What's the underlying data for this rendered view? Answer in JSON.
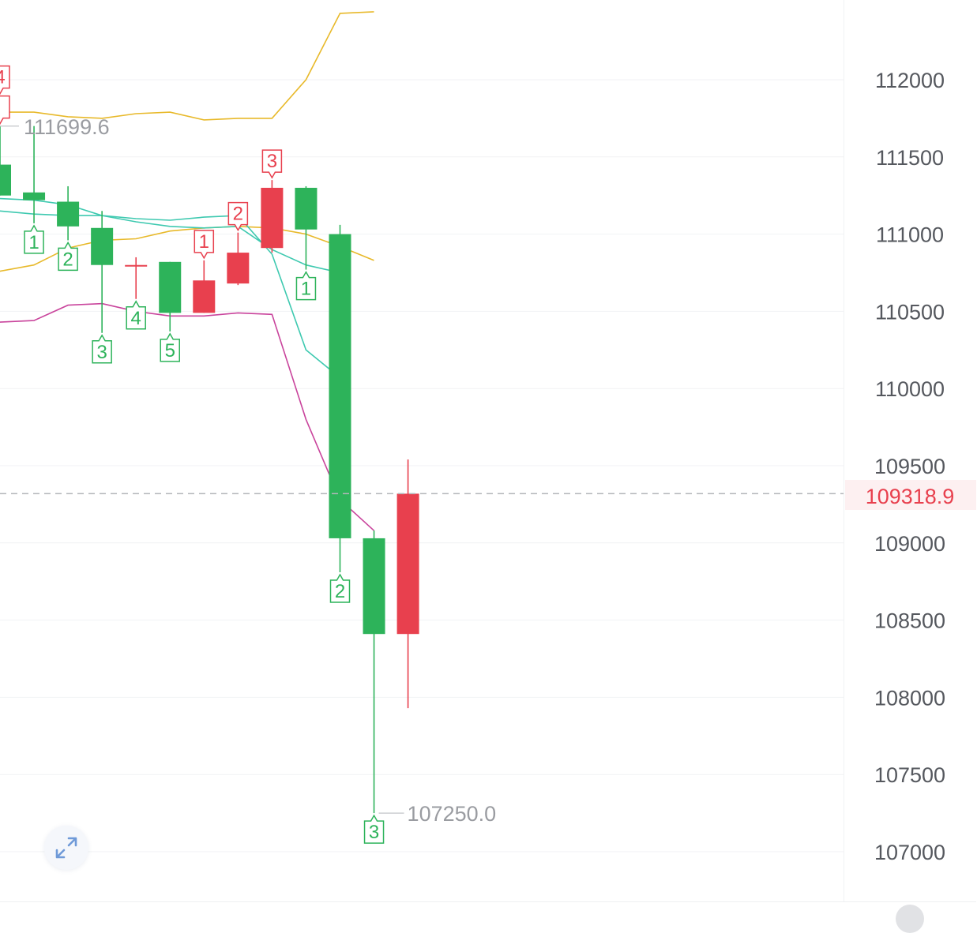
{
  "chart_data": {
    "type": "candlestick",
    "y_axis": {
      "ticks": [
        "112000",
        "111500",
        "111000",
        "110500",
        "110000",
        "109500",
        "109000",
        "108500",
        "108000",
        "107500",
        "107000"
      ],
      "range": [
        106800,
        112500
      ]
    },
    "current_price": {
      "label": "109318.9",
      "value": 109318.9,
      "color": "#e8404e"
    },
    "high_marker": {
      "label": "111699.6",
      "value": 111699.6
    },
    "low_marker": {
      "label": "107250.0",
      "value": 107250.0
    },
    "candles": [
      {
        "open": 111450,
        "close": 111250,
        "high": 111700,
        "low": 111250
      },
      {
        "open": 111270,
        "close": 111220,
        "high": 111700,
        "low": 111070
      },
      {
        "open": 111210,
        "close": 111050,
        "high": 111310,
        "low": 110960
      },
      {
        "open": 111040,
        "close": 110800,
        "high": 111150,
        "low": 110360
      },
      {
        "open": 110800,
        "close": 110800,
        "high": 110850,
        "low": 110580
      },
      {
        "open": 110820,
        "close": 110490,
        "high": 110820,
        "low": 110370
      },
      {
        "open": 110490,
        "close": 110700,
        "high": 110830,
        "low": 110490
      },
      {
        "open": 110680,
        "close": 110880,
        "high": 111010,
        "low": 110670
      },
      {
        "open": 110910,
        "close": 111300,
        "high": 111350,
        "low": 110880
      },
      {
        "open": 111300,
        "close": 111030,
        "high": 111310,
        "low": 110770
      },
      {
        "open": 111000,
        "close": 109030,
        "high": 111060,
        "low": 108810
      },
      {
        "open": 109030,
        "close": 108410,
        "high": 109080,
        "low": 107250
      },
      {
        "open": 108410,
        "close": 109318.9,
        "high": 109540,
        "low": 107930
      }
    ],
    "markers": [
      {
        "candle": 0,
        "label": "",
        "position": "above",
        "color": "#e8404e"
      },
      {
        "candle": 0,
        "label": "4",
        "position": "above",
        "color": "#e8404e"
      },
      {
        "candle": 1,
        "label": "1",
        "position": "below",
        "color": "#2db35a"
      },
      {
        "candle": 2,
        "label": "2",
        "position": "below",
        "color": "#2db35a"
      },
      {
        "candle": 3,
        "label": "3",
        "position": "below",
        "color": "#2db35a"
      },
      {
        "candle": 4,
        "label": "4",
        "position": "below",
        "color": "#2db35a"
      },
      {
        "candle": 5,
        "label": "5",
        "position": "below",
        "color": "#2db35a"
      },
      {
        "candle": 6,
        "label": "1",
        "position": "above",
        "color": "#e8404e"
      },
      {
        "candle": 7,
        "label": "2",
        "position": "above",
        "color": "#e8404e"
      },
      {
        "candle": 8,
        "label": "3",
        "position": "above",
        "color": "#e8404e"
      },
      {
        "candle": 9,
        "label": "1",
        "position": "below",
        "color": "#2db35a"
      },
      {
        "candle": 10,
        "label": "2",
        "position": "below",
        "color": "#2db35a"
      },
      {
        "candle": 11,
        "label": "3",
        "position": "below",
        "color": "#2db35a"
      }
    ],
    "lines": [
      {
        "color": "#e8b92a",
        "points": [
          [
            -1,
            111800
          ],
          [
            0,
            111790
          ],
          [
            1,
            111790
          ],
          [
            2,
            111760
          ],
          [
            3,
            111750
          ],
          [
            4,
            111780
          ],
          [
            5,
            111790
          ],
          [
            6,
            111740
          ],
          [
            7,
            111750
          ],
          [
            8,
            111750
          ],
          [
            9,
            112000
          ],
          [
            10,
            112430
          ],
          [
            11,
            112440
          ]
        ]
      },
      {
        "color": "#e8b92a",
        "points": [
          [
            -1,
            110720
          ],
          [
            1,
            110800
          ],
          [
            2,
            110910
          ],
          [
            3,
            110960
          ],
          [
            4,
            110970
          ],
          [
            5,
            111020
          ],
          [
            6,
            111040
          ],
          [
            7,
            111050
          ],
          [
            8,
            111040
          ],
          [
            9,
            111000
          ],
          [
            10,
            110920
          ],
          [
            11,
            110830
          ]
        ]
      },
      {
        "color": "#3ec9b0",
        "points": [
          [
            -1,
            111220
          ],
          [
            0,
            111230
          ],
          [
            1,
            111220
          ],
          [
            2,
            111190
          ],
          [
            3,
            111120
          ],
          [
            4,
            111080
          ],
          [
            5,
            111050
          ],
          [
            6,
            111040
          ],
          [
            7,
            111050
          ],
          [
            8,
            110900
          ],
          [
            9,
            110800
          ],
          [
            10,
            110750
          ]
        ]
      },
      {
        "color": "#3ec9b0",
        "points": [
          [
            -1,
            111140
          ],
          [
            0,
            111150
          ],
          [
            1,
            111130
          ],
          [
            2,
            111120
          ],
          [
            3,
            111120
          ],
          [
            4,
            111100
          ],
          [
            5,
            111090
          ],
          [
            6,
            111110
          ],
          [
            7,
            111120
          ],
          [
            8,
            110870
          ],
          [
            9,
            110250
          ],
          [
            10,
            110070
          ]
        ]
      },
      {
        "color": "#c9449c",
        "points": [
          [
            -1,
            110380
          ],
          [
            0,
            110430
          ],
          [
            1,
            110440
          ],
          [
            2,
            110540
          ],
          [
            3,
            110550
          ],
          [
            4,
            110500
          ],
          [
            5,
            110470
          ],
          [
            6,
            110470
          ],
          [
            7,
            110490
          ],
          [
            8,
            110480
          ],
          [
            9,
            109800
          ],
          [
            10,
            109280
          ],
          [
            11,
            109080
          ]
        ]
      }
    ],
    "colors": {
      "up": "#e8404e",
      "down": "#2db35a",
      "grid": "#f1f2f4",
      "axis_text": "#55585e",
      "marker_text": "#9a9ca1"
    },
    "grid": true
  },
  "icons": {
    "expand": "expand-icon"
  }
}
